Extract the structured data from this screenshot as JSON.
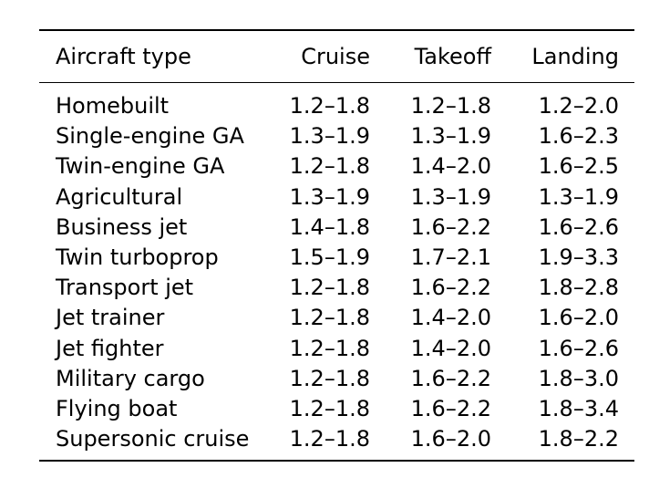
{
  "table": {
    "headers": [
      "Aircraft type",
      "Cruise",
      "Takeoff",
      "Landing"
    ],
    "rows": [
      [
        "Homebuilt",
        "1.2–1.8",
        "1.2–1.8",
        "1.2–2.0"
      ],
      [
        "Single-engine GA",
        "1.3–1.9",
        "1.3–1.9",
        "1.6–2.3"
      ],
      [
        "Twin-engine GA",
        "1.2–1.8",
        "1.4–2.0",
        "1.6–2.5"
      ],
      [
        "Agricultural",
        "1.3–1.9",
        "1.3–1.9",
        "1.3–1.9"
      ],
      [
        "Business jet",
        "1.4–1.8",
        "1.6–2.2",
        "1.6–2.6"
      ],
      [
        "Twin turboprop",
        "1.5–1.9",
        "1.7–2.1",
        "1.9–3.3"
      ],
      [
        "Transport jet",
        "1.2–1.8",
        "1.6–2.2",
        "1.8–2.8"
      ],
      [
        "Jet trainer",
        "1.2–1.8",
        "1.4–2.0",
        "1.6–2.0"
      ],
      [
        "Jet fighter",
        "1.2–1.8",
        "1.4–2.0",
        "1.6–2.6"
      ],
      [
        "Military cargo",
        "1.2–1.8",
        "1.6–2.2",
        "1.8–3.0"
      ],
      [
        "Flying boat",
        "1.2–1.8",
        "1.6–2.2",
        "1.8–3.4"
      ],
      [
        "Supersonic cruise",
        "1.2–1.8",
        "1.6–2.0",
        "1.8–2.2"
      ]
    ]
  }
}
